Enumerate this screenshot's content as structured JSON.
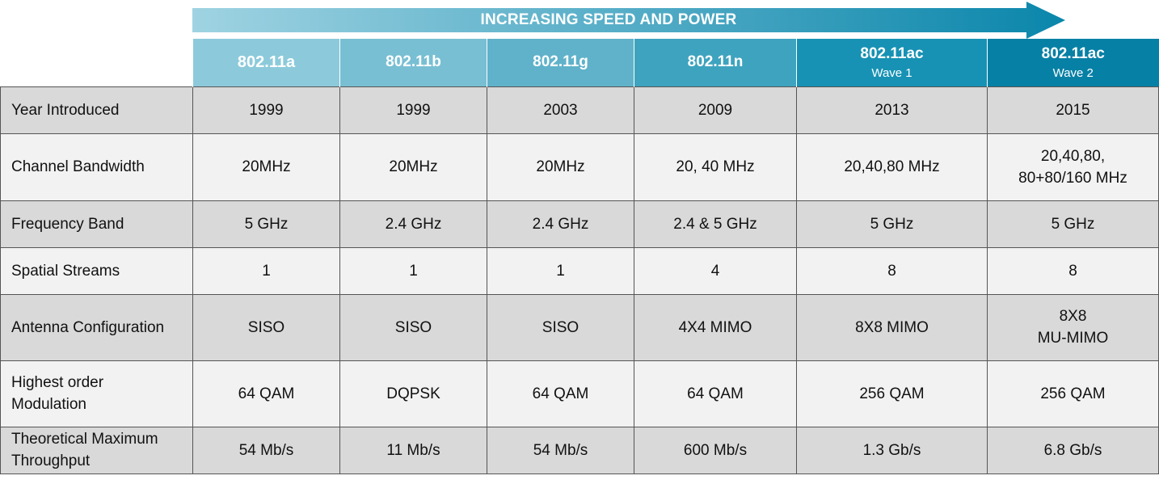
{
  "banner": {
    "label": "INCREASING SPEED AND POWER"
  },
  "columns": [
    {
      "standard": "802.11a",
      "sub": ""
    },
    {
      "standard": "802.11b",
      "sub": ""
    },
    {
      "standard": "802.11g",
      "sub": ""
    },
    {
      "standard": "802.11n",
      "sub": ""
    },
    {
      "standard": "802.11ac",
      "sub": "Wave 1"
    },
    {
      "standard": "802.11ac",
      "sub": "Wave 2"
    }
  ],
  "rows": [
    {
      "label": [
        "Year Introduced"
      ],
      "values": [
        [
          "1999"
        ],
        [
          "1999"
        ],
        [
          "2003"
        ],
        [
          "2009"
        ],
        [
          "2013"
        ],
        [
          "2015"
        ]
      ]
    },
    {
      "label": [
        "Channel Bandwidth"
      ],
      "values": [
        [
          "20MHz"
        ],
        [
          "20MHz"
        ],
        [
          "20MHz"
        ],
        [
          "20, 40 MHz"
        ],
        [
          "20,40,80 MHz"
        ],
        [
          "20,40,80,",
          "80+80/160 MHz"
        ]
      ]
    },
    {
      "label": [
        "Frequency Band"
      ],
      "values": [
        [
          "5 GHz"
        ],
        [
          "2.4 GHz"
        ],
        [
          "2.4 GHz"
        ],
        [
          "2.4 & 5 GHz"
        ],
        [
          "5 GHz"
        ],
        [
          "5 GHz"
        ]
      ]
    },
    {
      "label": [
        "Spatial Streams"
      ],
      "values": [
        [
          "1"
        ],
        [
          "1"
        ],
        [
          "1"
        ],
        [
          "4"
        ],
        [
          "8"
        ],
        [
          "8"
        ]
      ]
    },
    {
      "label": [
        "Antenna Configuration"
      ],
      "values": [
        [
          "SISO"
        ],
        [
          "SISO"
        ],
        [
          "SISO"
        ],
        [
          "4X4 MIMO"
        ],
        [
          "8X8 MIMO"
        ],
        [
          "8X8",
          "MU-MIMO"
        ]
      ]
    },
    {
      "label": [
        "Highest order",
        "Modulation"
      ],
      "values": [
        [
          "64 QAM"
        ],
        [
          "DQPSK"
        ],
        [
          "64 QAM"
        ],
        [
          "64 QAM"
        ],
        [
          "256 QAM"
        ],
        [
          "256 QAM"
        ]
      ]
    },
    {
      "label": [
        "Theoretical Maximum",
        "Throughput"
      ],
      "values": [
        [
          "54 Mb/s"
        ],
        [
          "11 Mb/s"
        ],
        [
          "54 Mb/s"
        ],
        [
          "600 Mb/s"
        ],
        [
          "1.3 Gb/s"
        ],
        [
          "6.8 Gb/s"
        ]
      ]
    }
  ],
  "colors": {
    "arrow_start": "#9fd3e2",
    "arrow_end": "#0a86ab",
    "row_odd": "#d9d9d9",
    "row_even": "#f2f2f2",
    "border": "#555555"
  }
}
